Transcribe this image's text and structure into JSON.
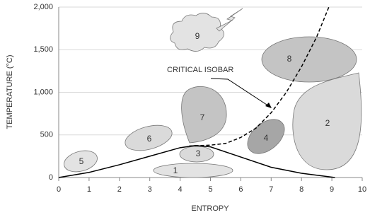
{
  "chart_data": {
    "type": "line",
    "xlabel": "ENTROPY",
    "ylabel": "TEMPERATURE (°C)",
    "xlim": [
      0,
      10
    ],
    "ylim": [
      0,
      2000
    ],
    "xticks": [
      0,
      1,
      2,
      3,
      4,
      5,
      6,
      7,
      8,
      9,
      10
    ],
    "yticks": [
      0,
      500,
      {
        "value": 1000,
        "label": "1,000"
      },
      {
        "value": 1500,
        "label": "1,500"
      },
      {
        "value": 2000,
        "label": "2,000"
      }
    ],
    "grid": true,
    "series": [
      {
        "color": "#000000",
        "style": "solid",
        "x": [
          0,
          1,
          2,
          3,
          4,
          4.5,
          5,
          6,
          7,
          8,
          9.1
        ],
        "values": [
          0,
          60,
          150,
          250,
          350,
          375,
          360,
          240,
          120,
          50,
          0
        ]
      },
      {
        "color": "#000000",
        "style": "dashed",
        "x": [
          4.3,
          5,
          5.5,
          6,
          6.5,
          7,
          7.5,
          8,
          8.5,
          8.9
        ],
        "values": [
          370,
          380,
          400,
          470,
          580,
          760,
          1000,
          1300,
          1650,
          2000
        ]
      }
    ],
    "annotation": "CRITICAL ISOBAR",
    "regions": [
      "1",
      "2",
      "3",
      "4",
      "5",
      "6",
      "7",
      "8",
      "9"
    ]
  }
}
